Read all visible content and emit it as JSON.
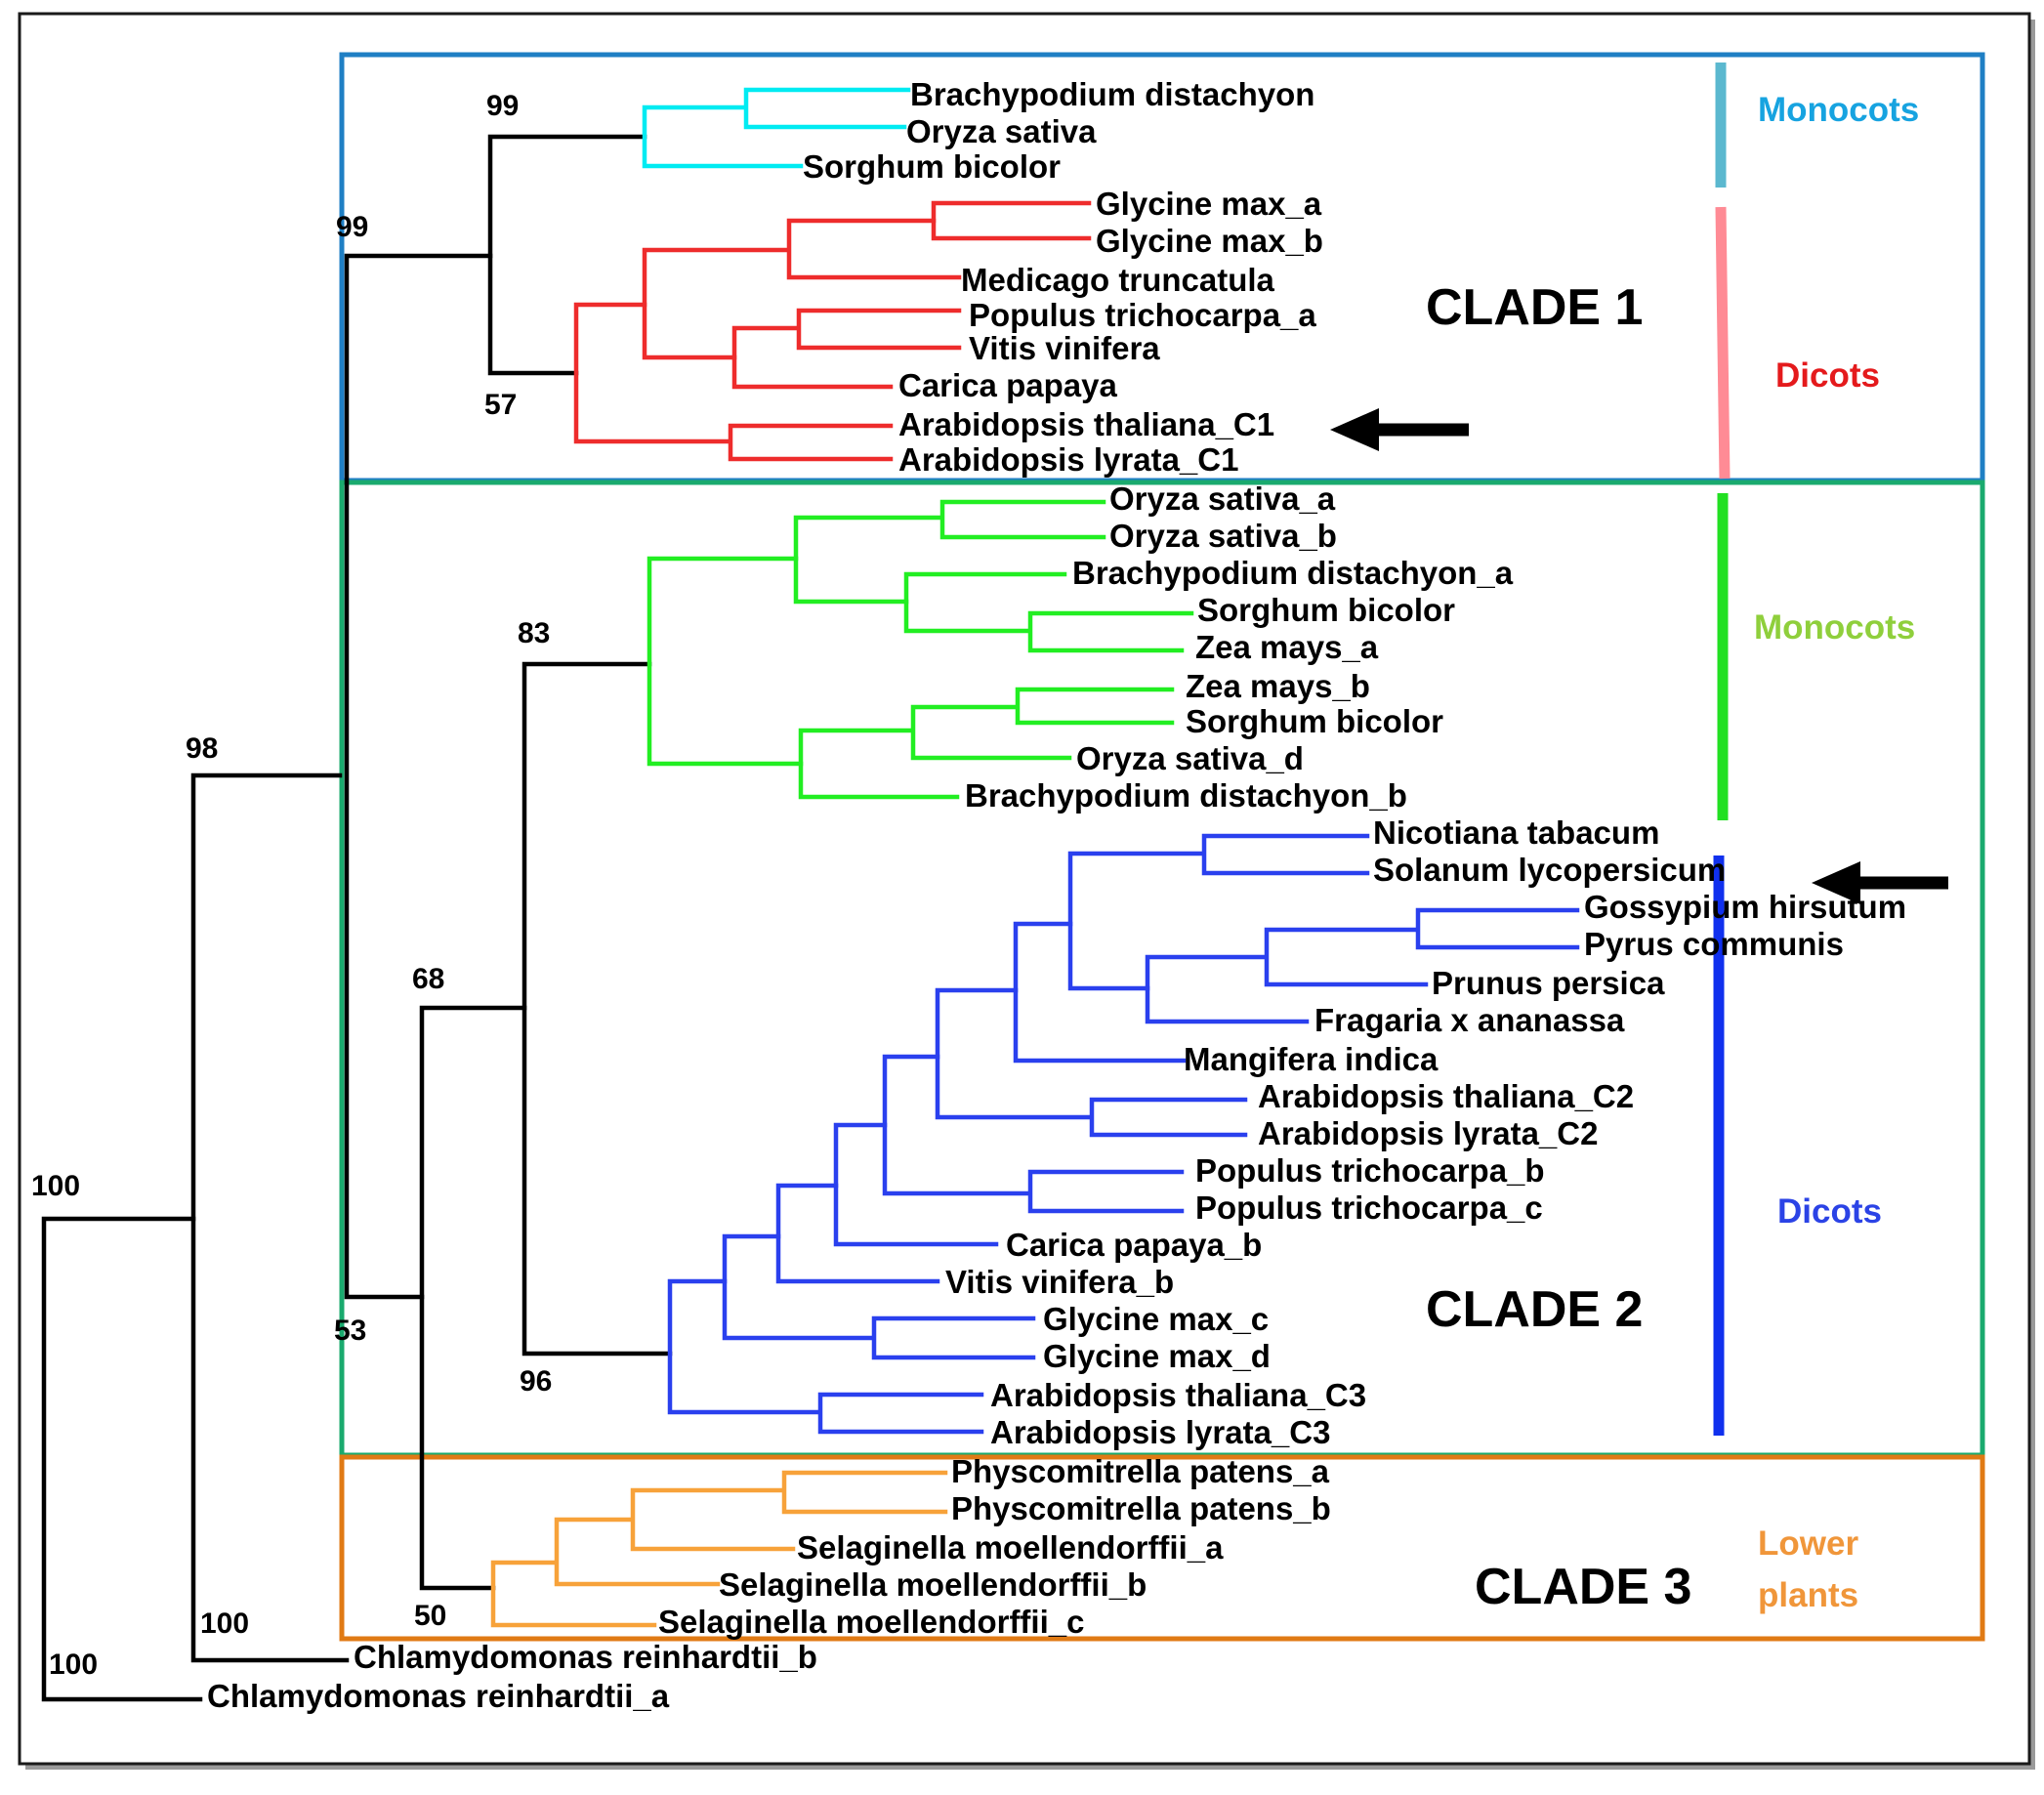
{
  "clades": {
    "clade1": {
      "title": "CLADE 1",
      "box_color": "#1f7fc4"
    },
    "clade2": {
      "title": "CLADE 2",
      "box_color": "#1aaa6e"
    },
    "clade3": {
      "title": "CLADE 3",
      "box_color": "#e07a14"
    }
  },
  "group_labels": [
    {
      "id": "c1-monocots",
      "text": "Monocots",
      "bar_color": "#5bb8cf",
      "text_color": "#17a3e0"
    },
    {
      "id": "c1-dicots",
      "text": "Dicots",
      "bar_color": "#ff8b95",
      "text_color": "#e41a1c"
    },
    {
      "id": "c2-monocots",
      "text": "Monocots",
      "bar_color": "#22e022",
      "text_color": "#8fcf3c"
    },
    {
      "id": "c2-dicots",
      "text": "Dicots",
      "bar_color": "#1030ee",
      "text_color": "#2b43e6"
    },
    {
      "id": "c3-lower",
      "text": "Lower",
      "bar_color": "",
      "text_color": "#f0963a"
    },
    {
      "id": "c3-plants",
      "text": "plants",
      "bar_color": "",
      "text_color": "#f0963a"
    }
  ],
  "taxa": [
    "Brachypodium distachyon",
    "Oryza sativa",
    "Sorghum bicolor",
    "Glycine max_a",
    "Glycine max_b",
    "Medicago truncatula",
    "Populus trichocarpa_a",
    "Vitis vinifera",
    "Carica papaya",
    "Arabidopsis thaliana_C1",
    "Arabidopsis lyrata_C1",
    "Oryza sativa_a",
    "Oryza sativa_b",
    "Brachypodium distachyon_a",
    "Sorghum bicolor",
    "Zea mays_a",
    "Zea mays_b",
    "Sorghum bicolor",
    "Oryza sativa_d",
    "Brachypodium distachyon_b",
    "Nicotiana tabacum",
    "Solanum lycopersicum",
    "Gossypium hirsutum",
    "Pyrus communis",
    "Prunus persica",
    "Fragaria x ananassa",
    "Mangifera indica",
    "Arabidopsis thaliana_C2",
    "Arabidopsis lyrata_C2",
    "Populus trichocarpa_b",
    "Populus trichocarpa_c",
    "Carica papaya_b",
    "Vitis vinifera_b",
    "Glycine max_c",
    "Glycine max_d",
    "Arabidopsis thaliana_C3",
    "Arabidopsis lyrata_C3",
    "Physcomitrella patens_a",
    "Physcomitrella patens_b",
    "Selaginella moellendorffii_a",
    "Selaginella moellendorffii_b",
    "Selaginella moellendorffii_c",
    "Chlamydomonas reinhardtii_b",
    "Chlamydomonas reinhardtii_a"
  ],
  "bootstrap_values": [
    "99",
    "99",
    "57",
    "83",
    "68",
    "96",
    "53",
    "50",
    "98",
    "100",
    "100",
    "100"
  ],
  "arrows": [
    {
      "points_to": "Arabidopsis thaliana_C1"
    },
    {
      "points_to": "Solanum lycopersicum"
    }
  ],
  "colors": {
    "backbone": "#000000",
    "clade1_monocots": "#00ebf2",
    "clade1_dicots": "#ee2c2c",
    "clade2_monocots": "#22ee22",
    "clade2_dicots": "#2a40ee",
    "clade3": "#f7a23a"
  }
}
